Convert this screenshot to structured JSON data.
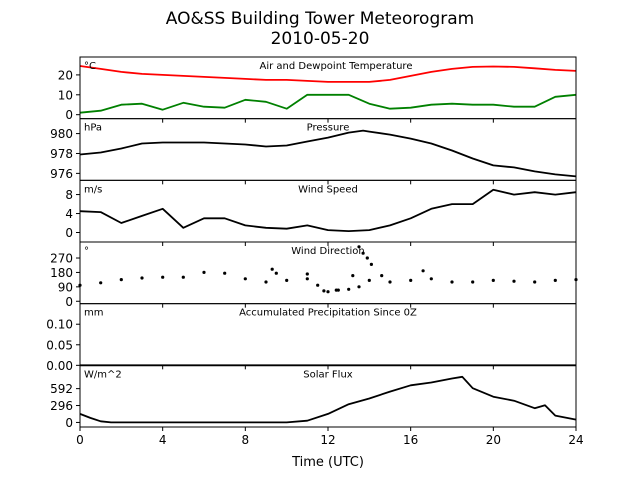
{
  "figure": {
    "title_line1": "AO&SS Building Tower Meteorogram",
    "title_line2": "2010-05-20",
    "xlabel": "Time (UTC)"
  },
  "chart_data": [
    {
      "type": "line",
      "title": "Air and Dewpoint Temperature",
      "unit": "°C",
      "xlim": [
        0,
        24
      ],
      "ylim": [
        -2,
        29
      ],
      "yticks": [
        0,
        10,
        20
      ],
      "grid": false,
      "series": [
        {
          "color": "#ff0000",
          "x": [
            0,
            1,
            2,
            3,
            4,
            5,
            6,
            7,
            8,
            9,
            10,
            11,
            12,
            13,
            14,
            15,
            16,
            17,
            18,
            19,
            20,
            21,
            22,
            23,
            24
          ],
          "values": [
            24.5,
            23,
            21.5,
            20.5,
            20,
            19.5,
            19,
            18.5,
            18,
            17.5,
            17.5,
            17,
            16.5,
            16.5,
            16.5,
            17.5,
            19.5,
            21.5,
            23,
            24,
            24.2,
            24,
            23.3,
            22.5,
            22
          ]
        },
        {
          "color": "#008000",
          "x": [
            0,
            1,
            2,
            3,
            4,
            5,
            6,
            7,
            8,
            9,
            10,
            11,
            12,
            13,
            14,
            15,
            16,
            17,
            18,
            19,
            20,
            21,
            22,
            23,
            24
          ],
          "values": [
            1,
            2,
            5,
            5.5,
            2.5,
            6,
            4,
            3.5,
            7.5,
            6.5,
            3,
            10,
            10,
            10,
            5.5,
            3,
            3.5,
            5,
            5.5,
            5,
            5,
            4,
            4,
            9,
            10
          ]
        }
      ]
    },
    {
      "type": "line",
      "title": "Pressure",
      "unit": "hPa",
      "xlim": [
        0,
        24
      ],
      "ylim": [
        975.3,
        981.5
      ],
      "yticks": [
        976,
        978,
        980
      ],
      "series": [
        {
          "color": "#000000",
          "x": [
            0,
            1,
            2,
            3,
            4,
            5,
            6,
            7,
            8,
            9,
            10,
            11,
            12,
            13,
            13.7,
            14,
            15,
            16,
            17,
            18,
            19,
            20,
            21,
            22,
            23,
            24
          ],
          "values": [
            977.9,
            978.1,
            978.5,
            979,
            979.1,
            979.1,
            979.1,
            979,
            978.9,
            978.7,
            978.8,
            979.2,
            979.6,
            980.1,
            980.3,
            980.2,
            979.9,
            979.5,
            979,
            978.3,
            977.5,
            976.8,
            976.6,
            976.2,
            975.9,
            975.7
          ]
        }
      ]
    },
    {
      "type": "line",
      "title": "Wind Speed",
      "unit": "m/s",
      "xlim": [
        0,
        24
      ],
      "ylim": [
        -2,
        11
      ],
      "yticks": [
        0,
        4,
        8
      ],
      "series": [
        {
          "color": "#000000",
          "x": [
            0,
            1,
            2,
            3,
            4,
            5,
            6,
            7,
            8,
            9,
            10,
            11,
            12,
            13,
            14,
            15,
            16,
            17,
            18,
            19,
            20,
            21,
            22,
            23,
            24
          ],
          "values": [
            4.5,
            4.3,
            2,
            3.5,
            5,
            1,
            3,
            3,
            1.5,
            1,
            0.8,
            1.5,
            0.5,
            0.3,
            0.5,
            1.5,
            3,
            5,
            6,
            6,
            9,
            8,
            8.5,
            8,
            8.5
          ]
        }
      ]
    },
    {
      "type": "scatter",
      "title": "Wind Direction",
      "unit": "°",
      "xlim": [
        0,
        24
      ],
      "ylim": [
        -15,
        370
      ],
      "yticks": [
        0,
        90,
        180,
        270
      ],
      "series": [
        {
          "color": "#000000",
          "x": [
            0,
            1,
            2,
            3,
            4,
            5,
            6,
            7,
            8,
            9,
            10,
            11,
            11.5,
            12,
            12.5,
            13,
            13.5,
            14,
            15,
            16,
            17,
            18,
            19,
            20,
            21,
            22,
            23,
            24
          ],
          "values": [
            100,
            115,
            135,
            145,
            150,
            150,
            180,
            175,
            140,
            120,
            130,
            140,
            100,
            60,
            70,
            75,
            90,
            130,
            120,
            130,
            140,
            120,
            120,
            130,
            125,
            120,
            130,
            135
          ]
        },
        {
          "color": "#000000",
          "x": [
            9.3,
            9.5,
            11,
            11.8,
            12.4,
            13.2,
            13.5,
            13.7,
            13.9,
            14.1,
            14.6,
            16.6
          ],
          "values": [
            200,
            175,
            170,
            65,
            70,
            160,
            340,
            300,
            270,
            230,
            160,
            190
          ]
        }
      ]
    },
    {
      "type": "line",
      "title": "Accumulated Precipitation Since 0Z",
      "unit": "mm",
      "xlim": [
        0,
        24
      ],
      "ylim": [
        0,
        0.15
      ],
      "yticks": [
        0,
        0.05,
        0.1
      ],
      "ytick_labels": [
        "0.00",
        "0.05",
        "0.10"
      ],
      "series": [
        {
          "color": "#000000",
          "x": [
            0,
            24
          ],
          "values": [
            0,
            0
          ]
        }
      ]
    },
    {
      "type": "line",
      "title": "Solar Flux",
      "unit": "W/m^2",
      "xlim": [
        0,
        24
      ],
      "ylim": [
        -80,
        1000
      ],
      "yticks": [
        0,
        296,
        592
      ],
      "series": [
        {
          "color": "#000000",
          "x": [
            0,
            0.5,
            1,
            1.5,
            10,
            11,
            12,
            13,
            14,
            15,
            16,
            17,
            18,
            18.5,
            19,
            20,
            21,
            22,
            22.5,
            23,
            24
          ],
          "values": [
            150,
            80,
            20,
            0,
            0,
            30,
            150,
            320,
            420,
            540,
            650,
            700,
            770,
            800,
            600,
            450,
            380,
            250,
            300,
            120,
            50
          ]
        }
      ]
    }
  ],
  "xaxis": {
    "ticks": [
      0,
      4,
      8,
      12,
      16,
      20,
      24
    ],
    "tick_labels": [
      "0",
      "4",
      "8",
      "12",
      "16",
      "20",
      "24"
    ]
  }
}
